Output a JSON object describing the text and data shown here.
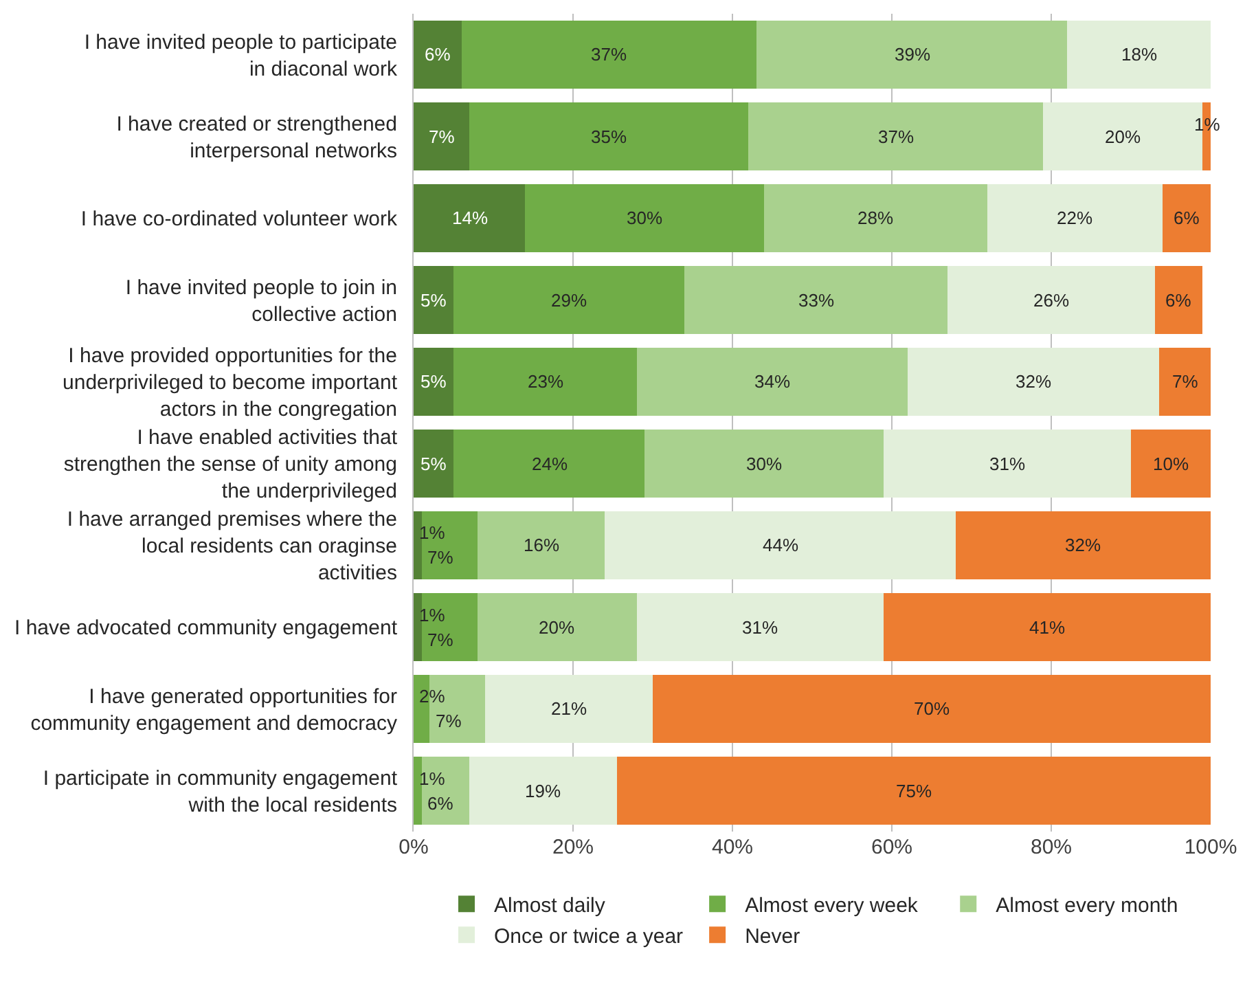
{
  "chart_data": {
    "type": "bar",
    "orientation": "horizontal",
    "stacked": true,
    "grid": "x",
    "legend": "bottom",
    "categories": [
      "I have invited people to participate in diaconal work",
      "I have created or strengthened interpersonal networks",
      "I have co-ordinated volunteer work",
      "I have invited people to join in collective action",
      "I have provided opportunities for the underprivileged to become important actors in the congregation",
      "I have enabled activities that strengthen the sense of unity among the underprivileged",
      "I have arranged premises where the local residents can oraginse activities",
      "I have advocated community engagement",
      "I have generated opportunities for community engagement and democracy",
      "I participate in community engagement with the local residents"
    ],
    "series": [
      {
        "name": "Almost daily",
        "color": "#548235",
        "values": [
          6,
          7,
          14,
          5,
          5,
          5,
          1,
          1,
          null,
          null
        ],
        "value_labels": [
          "6%",
          "7%",
          "14%",
          "5%",
          "5%",
          "5%",
          "1%",
          "1%",
          null,
          null
        ]
      },
      {
        "name": "Almost every week",
        "color": "#70ad47",
        "values": [
          37,
          35,
          30,
          29,
          23,
          24,
          7,
          7,
          2,
          1
        ],
        "value_labels": [
          "37%",
          "35%",
          "30%",
          "29%",
          "23%",
          "24%",
          "7%",
          "7%",
          "2%",
          "1%"
        ]
      },
      {
        "name": "Almost every month",
        "color": "#a9d18e",
        "values": [
          39,
          37,
          28,
          33,
          34,
          30,
          16,
          20,
          7,
          6
        ],
        "value_labels": [
          "39%",
          "37%",
          "28%",
          "33%",
          "34%",
          "30%",
          "16%",
          "20%",
          "7%",
          "6%"
        ]
      },
      {
        "name": "Once or twice a year",
        "color": "#e2efda",
        "values": [
          18,
          20,
          22,
          26,
          31.5,
          31,
          44,
          31,
          21,
          18.5
        ],
        "value_labels": [
          "18%",
          "20%",
          "22%",
          "26%",
          "32%",
          "31%",
          "44%",
          "31%",
          "21%",
          "19%"
        ]
      },
      {
        "name": "Never",
        "color": "#ed7d31",
        "values": [
          null,
          1,
          6,
          6,
          6.5,
          10,
          32,
          41,
          70,
          74.5
        ],
        "value_labels": [
          null,
          "1%",
          "6%",
          "6%",
          "7%",
          "10%",
          "32%",
          "41%",
          "70%",
          "75%"
        ]
      }
    ],
    "xlim": [
      0,
      100
    ],
    "xticks": [
      {
        "value": 0,
        "label": "0%"
      },
      {
        "value": 20,
        "label": "20%"
      },
      {
        "value": 40,
        "label": "40%"
      },
      {
        "value": 60,
        "label": "60%"
      },
      {
        "value": 80,
        "label": "80%"
      },
      {
        "value": 100,
        "label": "100%"
      }
    ]
  }
}
